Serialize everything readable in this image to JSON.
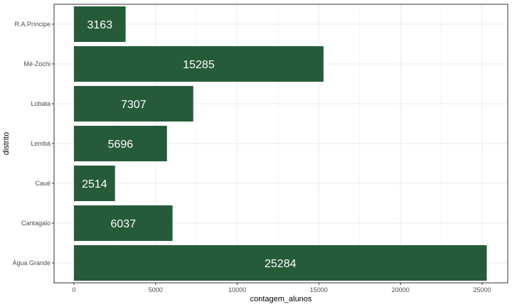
{
  "chart_data": {
    "type": "bar",
    "orientation": "horizontal",
    "categories": [
      "Água Grande",
      "Cantagalo",
      "Caué",
      "Lembá",
      "Lobata",
      "Mé-Zochi",
      "R.A.Príncipe"
    ],
    "values": [
      25284,
      6037,
      2514,
      5696,
      7307,
      15285,
      3163
    ],
    "value_labels": [
      "25284",
      "6037",
      "2514",
      "5696",
      "7307",
      "15285",
      "3163"
    ],
    "xlabel": "contagem_alunos",
    "ylabel": "distrito",
    "xlim": [
      0,
      26500
    ],
    "xticks": [
      0,
      5000,
      10000,
      15000,
      20000,
      25000
    ],
    "xtick_labels": [
      "0",
      "5000",
      "10000",
      "15000",
      "20000",
      "25000"
    ],
    "grid": true,
    "bar_color": "#265b3a",
    "label_color": "#ffffff",
    "grid_color": "#ebebeb",
    "panel_border_color": "#333333"
  }
}
